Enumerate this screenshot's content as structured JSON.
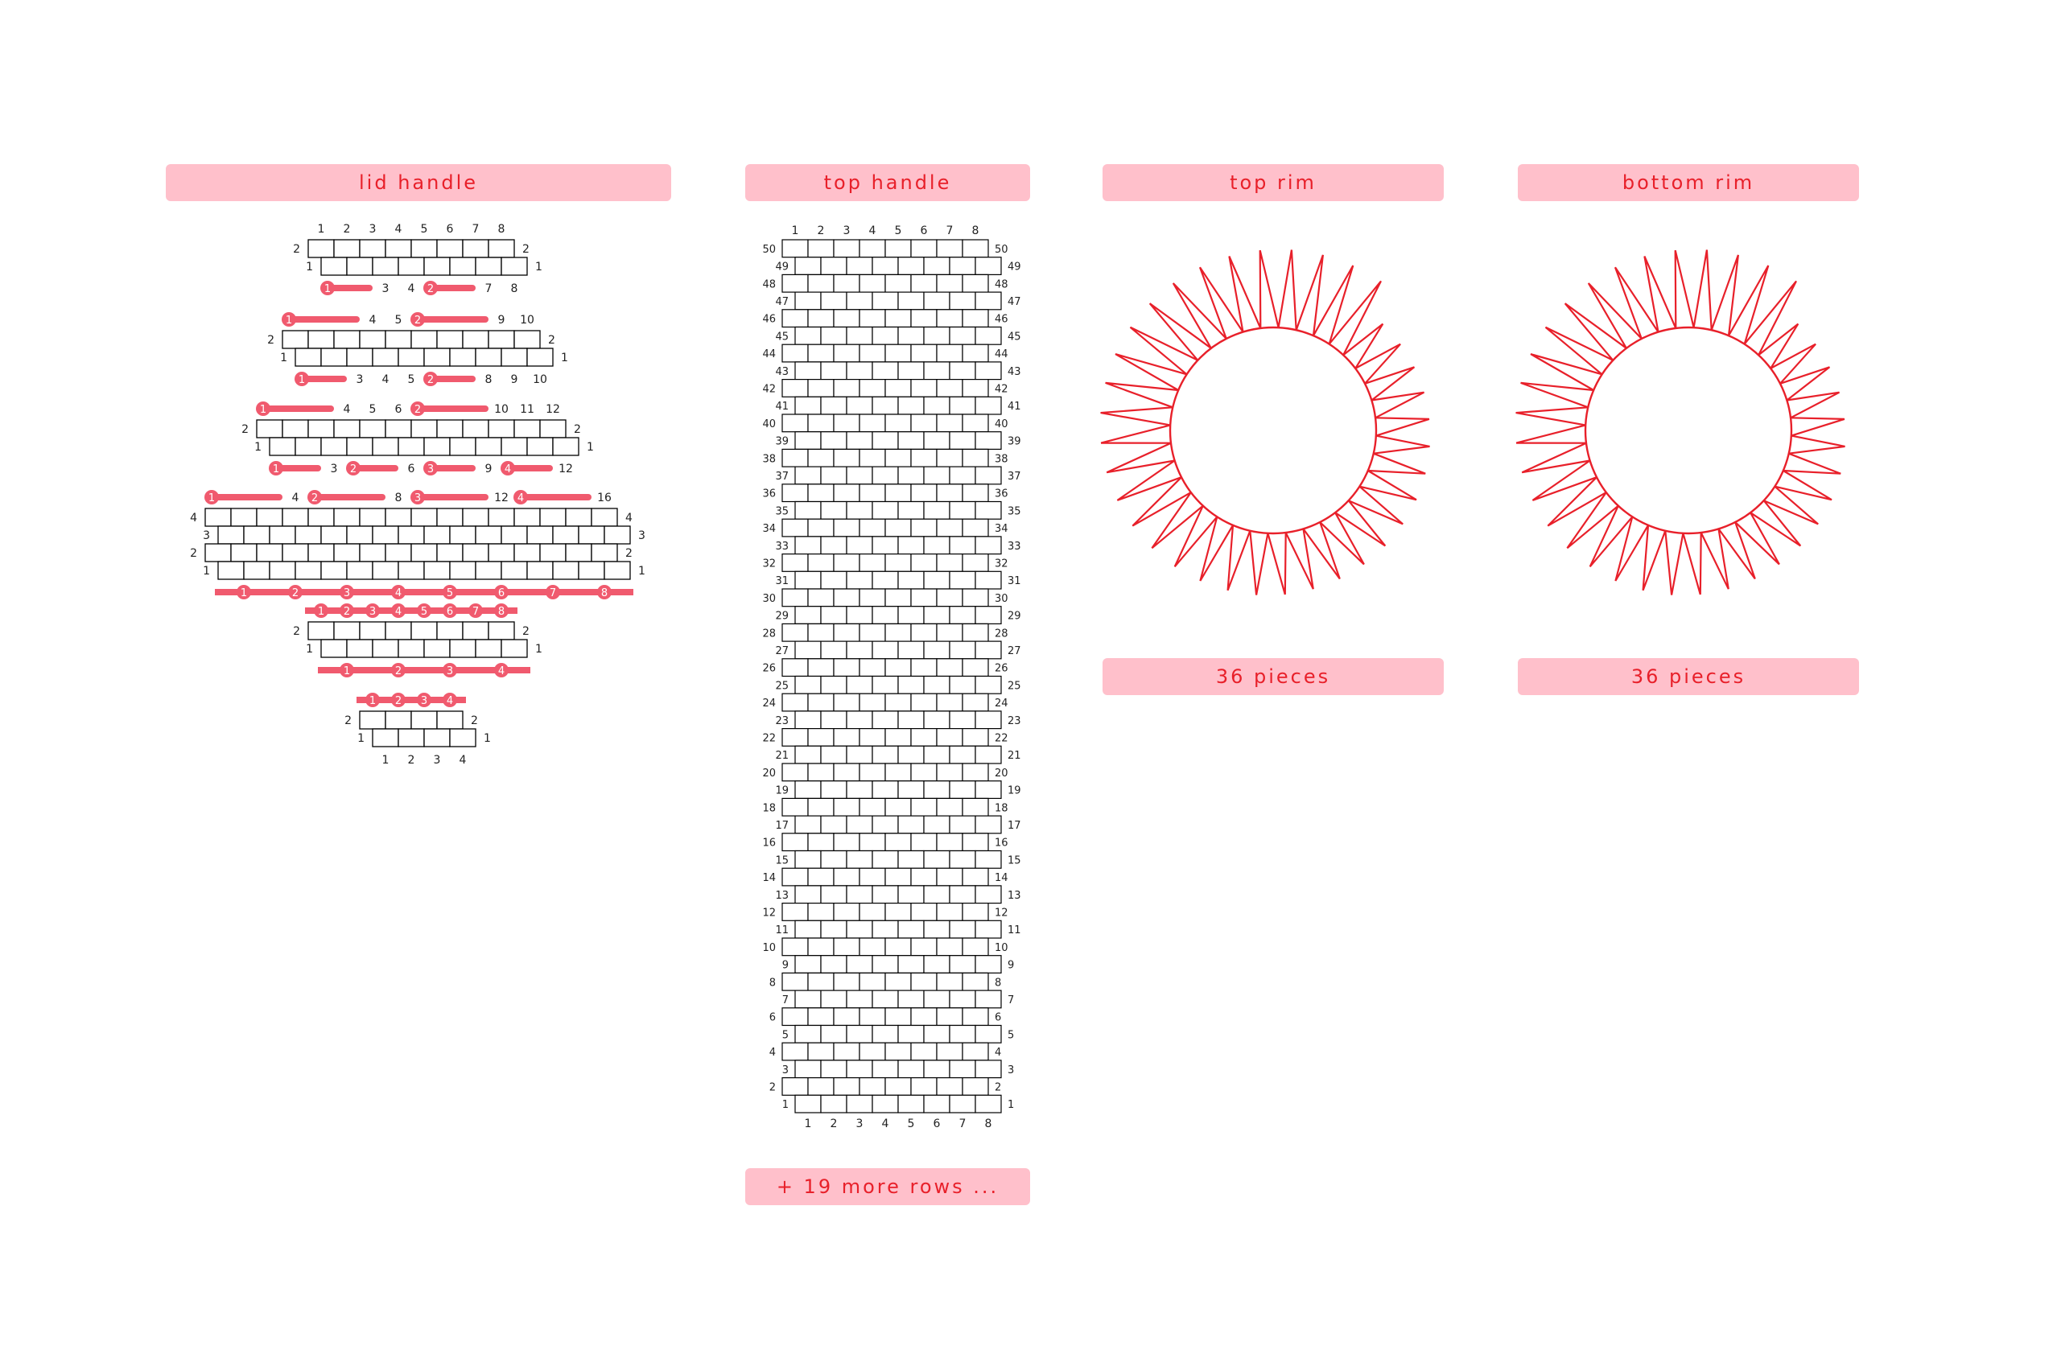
{
  "panels": {
    "lid_handle": {
      "title": "lid handle"
    },
    "top_handle": {
      "title": "top handle",
      "more_rows_label": "+ 19 more rows ..."
    },
    "top_rim": {
      "title": "top rim",
      "pieces_label": "36 pieces"
    },
    "bottom_rim": {
      "title": "bottom rim",
      "pieces_label": "36 pieces"
    }
  },
  "colors": {
    "pill_bg": "#ffc0cb",
    "accent": "#e8202a",
    "marker": "#f05a6e",
    "grid_line": "#000000"
  },
  "lid_handle": {
    "blocks": [
      {
        "shift_base": 2,
        "rows": [
          {
            "count": 8,
            "shifted": true,
            "left": "2",
            "right": "2"
          },
          {
            "count": 8,
            "shifted": false,
            "left": "1",
            "right": "1"
          }
        ],
        "top": {
          "type": "numbers",
          "labels": [
            "1",
            "2",
            "3",
            "4",
            "5",
            "6",
            "7",
            "8"
          ]
        },
        "bottom": {
          "type": "bars",
          "items": [
            {
              "cells": [
                1,
                2
              ],
              "badge": "1"
            },
            {
              "cells": [
                3
              ],
              "label": "3"
            },
            {
              "cells": [
                4
              ],
              "label": "4"
            },
            {
              "cells": [
                5,
                6
              ],
              "badge": "2"
            },
            {
              "cells": [
                7
              ],
              "label": "7"
            },
            {
              "cells": [
                8
              ],
              "label": "8"
            }
          ]
        }
      },
      {
        "rows": [
          {
            "count": 10,
            "shifted": true,
            "left": "2",
            "right": "2"
          },
          {
            "count": 10,
            "shifted": false,
            "left": "1",
            "right": "1"
          }
        ],
        "top": {
          "type": "bars",
          "items": [
            {
              "cells": [
                1,
                2,
                3
              ],
              "badge": "1"
            },
            {
              "cells": [
                4
              ],
              "label": "4"
            },
            {
              "cells": [
                5
              ],
              "label": "5"
            },
            {
              "cells": [
                6,
                7,
                8
              ],
              "badge": "2"
            },
            {
              "cells": [
                9
              ],
              "label": "9"
            },
            {
              "cells": [
                10
              ],
              "label": "10"
            }
          ]
        },
        "bottom": {
          "type": "bars",
          "items": [
            {
              "cells": [
                1,
                2
              ],
              "badge": "1"
            },
            {
              "cells": [
                3
              ],
              "label": "3"
            },
            {
              "cells": [
                4
              ],
              "label": "4"
            },
            {
              "cells": [
                5
              ],
              "label": "5"
            },
            {
              "cells": [
                6,
                7
              ],
              "badge": "2"
            },
            {
              "cells": [
                8
              ],
              "label": "8"
            },
            {
              "cells": [
                9
              ],
              "label": "9"
            },
            {
              "cells": [
                10
              ],
              "label": "10"
            }
          ]
        }
      },
      {
        "rows": [
          {
            "count": 12,
            "shifted": true,
            "left": "2",
            "right": "2"
          },
          {
            "count": 12,
            "shifted": false,
            "left": "1",
            "right": "1"
          }
        ],
        "top": {
          "type": "bars",
          "items": [
            {
              "cells": [
                1,
                2,
                3
              ],
              "badge": "1"
            },
            {
              "cells": [
                4
              ],
              "label": "4"
            },
            {
              "cells": [
                5
              ],
              "label": "5"
            },
            {
              "cells": [
                6
              ],
              "label": "6"
            },
            {
              "cells": [
                7,
                8,
                9
              ],
              "badge": "2"
            },
            {
              "cells": [
                10
              ],
              "label": "10"
            },
            {
              "cells": [
                11
              ],
              "label": "11"
            },
            {
              "cells": [
                12
              ],
              "label": "12"
            }
          ]
        },
        "bottom": {
          "type": "bars",
          "items": [
            {
              "cells": [
                1,
                2
              ],
              "badge": "1"
            },
            {
              "cells": [
                3
              ],
              "label": "3"
            },
            {
              "cells": [
                4,
                5
              ],
              "badge": "2"
            },
            {
              "cells": [
                6
              ],
              "label": "6"
            },
            {
              "cells": [
                7,
                8
              ],
              "badge": "3"
            },
            {
              "cells": [
                9
              ],
              "label": "9"
            },
            {
              "cells": [
                10,
                11
              ],
              "badge": "4"
            },
            {
              "cells": [
                12
              ],
              "label": "12"
            }
          ]
        }
      },
      {
        "rows": [
          {
            "count": 16,
            "shifted": true,
            "left": "4",
            "right": "4"
          },
          {
            "count": 16,
            "shifted": false,
            "left": "3",
            "right": "3"
          },
          {
            "count": 16,
            "shifted": true,
            "left": "2",
            "right": "2"
          },
          {
            "count": 16,
            "shifted": false,
            "left": "1",
            "right": "1"
          }
        ],
        "top": {
          "type": "bars",
          "items": [
            {
              "cells": [
                1,
                2,
                3
              ],
              "badge": "1"
            },
            {
              "cells": [
                4
              ],
              "label": "4"
            },
            {
              "cells": [
                5,
                6,
                7
              ],
              "badge": "2"
            },
            {
              "cells": [
                8
              ],
              "label": "8"
            },
            {
              "cells": [
                9,
                10,
                11
              ],
              "badge": "3"
            },
            {
              "cells": [
                12
              ],
              "label": "12"
            },
            {
              "cells": [
                13,
                14,
                15
              ],
              "badge": "4"
            },
            {
              "cells": [
                16
              ],
              "label": "16"
            }
          ]
        },
        "bottom": {
          "type": "fullbar",
          "badges": [
            "1",
            "2",
            "3",
            "4",
            "5",
            "6",
            "7",
            "8"
          ]
        }
      },
      {
        "rows": [
          {
            "count": 8,
            "shifted": true,
            "left": "2",
            "right": "2"
          },
          {
            "count": 8,
            "shifted": false,
            "left": "1",
            "right": "1"
          }
        ],
        "top": {
          "type": "fullbar",
          "badges": [
            "1",
            "2",
            "3",
            "4",
            "5",
            "6",
            "7",
            "8"
          ]
        },
        "bottom": {
          "type": "fullbar",
          "badges": [
            "1",
            "2",
            "3",
            "4"
          ]
        }
      },
      {
        "rows": [
          {
            "count": 4,
            "shifted": true,
            "left": "2",
            "right": "2"
          },
          {
            "count": 4,
            "shifted": false,
            "left": "1",
            "right": "1"
          }
        ],
        "top": {
          "type": "fullbar",
          "badges": [
            "1",
            "2",
            "3",
            "4"
          ]
        },
        "bottom": {
          "type": "numbers",
          "labels": [
            "1",
            "2",
            "3",
            "4"
          ]
        }
      }
    ]
  },
  "top_handle": {
    "cells_per_row": 8,
    "row_count": 50,
    "top_labels": [
      "1",
      "2",
      "3",
      "4",
      "5",
      "6",
      "7",
      "8"
    ],
    "bottom_labels": [
      "1",
      "2",
      "3",
      "4",
      "5",
      "6",
      "7",
      "8"
    ],
    "row_labels": [
      "50",
      "49",
      "48",
      "47",
      "46",
      "45",
      "44",
      "43",
      "42",
      "41",
      "40",
      "39",
      "38",
      "37",
      "36",
      "35",
      "34",
      "33",
      "32",
      "31",
      "30",
      "29",
      "28",
      "27",
      "26",
      "25",
      "24",
      "23",
      "22",
      "21",
      "20",
      "19",
      "18",
      "17",
      "16",
      "15",
      "14",
      "13",
      "12",
      "11",
      "10",
      "9",
      "8",
      "7",
      "6",
      "5",
      "4",
      "3",
      "2",
      "1"
    ]
  },
  "rims": {
    "top_rim": {
      "pieces": 36
    },
    "bottom_rim": {
      "pieces": 36
    }
  }
}
